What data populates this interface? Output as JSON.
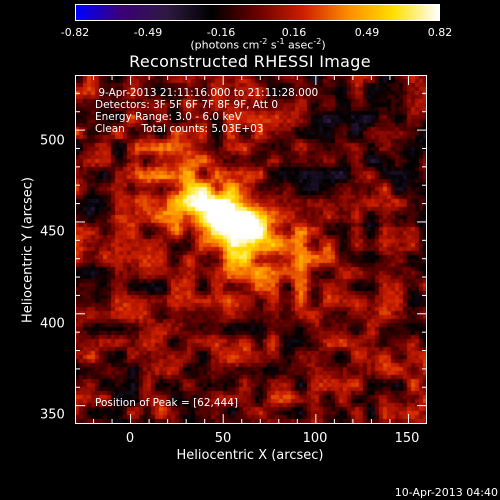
{
  "colorbar": {
    "gradient": [
      "#0000ff",
      "#3b0078",
      "#2e1a42",
      "#000000",
      "#6a0000",
      "#cc1e00",
      "#ff8c00",
      "#ffe000",
      "#ffffff"
    ],
    "tick_labels": [
      "-0.82",
      "-0.49",
      "-0.16",
      "0.16",
      "0.49",
      "0.82"
    ],
    "units_prefix": "(photons cm",
    "units_exp1": "-2",
    "units_mid": " s",
    "units_exp2": "-1",
    "units_mid2": " asec",
    "units_exp3": "-2",
    "units_suffix": ")"
  },
  "title": "Reconstructed RHESSI Image",
  "info": {
    "time_range": " 9-Apr-2013 21:11:16.000 to 21:11:28.000",
    "detectors": "Detectors: 3F 5F 6F 7F 8F 9F, Att 0",
    "energy": "Energy Range: 3.0 - 6.0 keV",
    "clean": "Clean     Total counts: 5.03E+03",
    "peak": "Position of Peak = [62,444]"
  },
  "axes": {
    "xlabel": "Heliocentric X (arcsec)",
    "ylabel": "Heliocentric Y (arcsec)",
    "x_ticks": [
      {
        "value": 0,
        "label": "0"
      },
      {
        "value": 50,
        "label": "50"
      },
      {
        "value": 100,
        "label": "100"
      },
      {
        "value": 150,
        "label": "150"
      }
    ],
    "y_ticks": [
      {
        "value": 350,
        "label": "350"
      },
      {
        "value": 400,
        "label": "400"
      },
      {
        "value": 450,
        "label": "450"
      },
      {
        "value": 500,
        "label": "500"
      }
    ],
    "xlim": [
      -30,
      160
    ],
    "ylim": [
      340,
      530
    ]
  },
  "source": {
    "peak_x": 62,
    "peak_y": 444
  },
  "timestamp": "10-Apr-2013 04:40"
}
